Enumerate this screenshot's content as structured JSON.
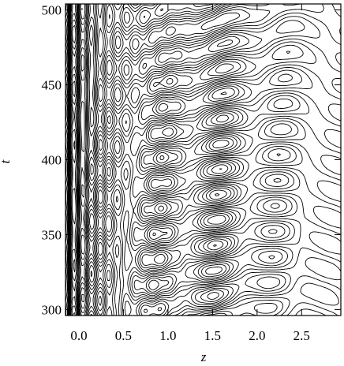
{
  "chart_data": {
    "type": "contour",
    "xlabel": "z",
    "ylabel": "t",
    "xlim": [
      -0.15,
      2.94
    ],
    "ylim": [
      296,
      504
    ],
    "xticks": [
      {
        "value": 0,
        "label": "0.0"
      },
      {
        "value": 0.5,
        "label": "0.5"
      },
      {
        "value": 1,
        "label": "1.0"
      },
      {
        "value": 1.5,
        "label": "1.5"
      },
      {
        "value": 2,
        "label": "2.0"
      },
      {
        "value": 2.5,
        "label": "2.5"
      }
    ],
    "yticks": [
      300,
      350,
      400,
      450,
      500
    ],
    "color": "#000000"
  }
}
